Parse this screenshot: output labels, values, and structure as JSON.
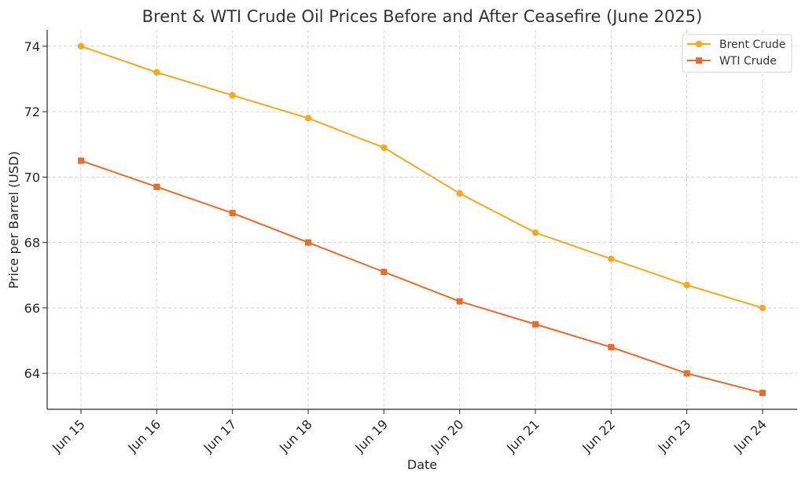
{
  "chart_data": {
    "type": "line",
    "title": "Brent & WTI Crude Oil Prices Before and After Ceasefire (June 2025)",
    "xlabel": "Date",
    "ylabel": "Price per Barrel (USD)",
    "categories": [
      "Jun 15",
      "Jun 16",
      "Jun 17",
      "Jun 18",
      "Jun 19",
      "Jun 20",
      "Jun 21",
      "Jun 22",
      "Jun 23",
      "Jun 24"
    ],
    "ylim": [
      62.9,
      74.5
    ],
    "yticks": [
      64,
      66,
      68,
      70,
      72,
      74
    ],
    "grid": true,
    "legend_position": "top-right",
    "series": [
      {
        "name": "Brent Crude",
        "color": "#f7a81b",
        "marker": "circle",
        "values": [
          74.0,
          73.2,
          72.5,
          71.8,
          70.9,
          69.5,
          68.3,
          67.5,
          66.7,
          66.0
        ]
      },
      {
        "name": "WTI Crude",
        "color": "#ed6a28",
        "marker": "square",
        "values": [
          70.5,
          69.7,
          68.9,
          68.0,
          67.1,
          66.2,
          65.5,
          64.8,
          64.0,
          63.4
        ]
      }
    ]
  }
}
